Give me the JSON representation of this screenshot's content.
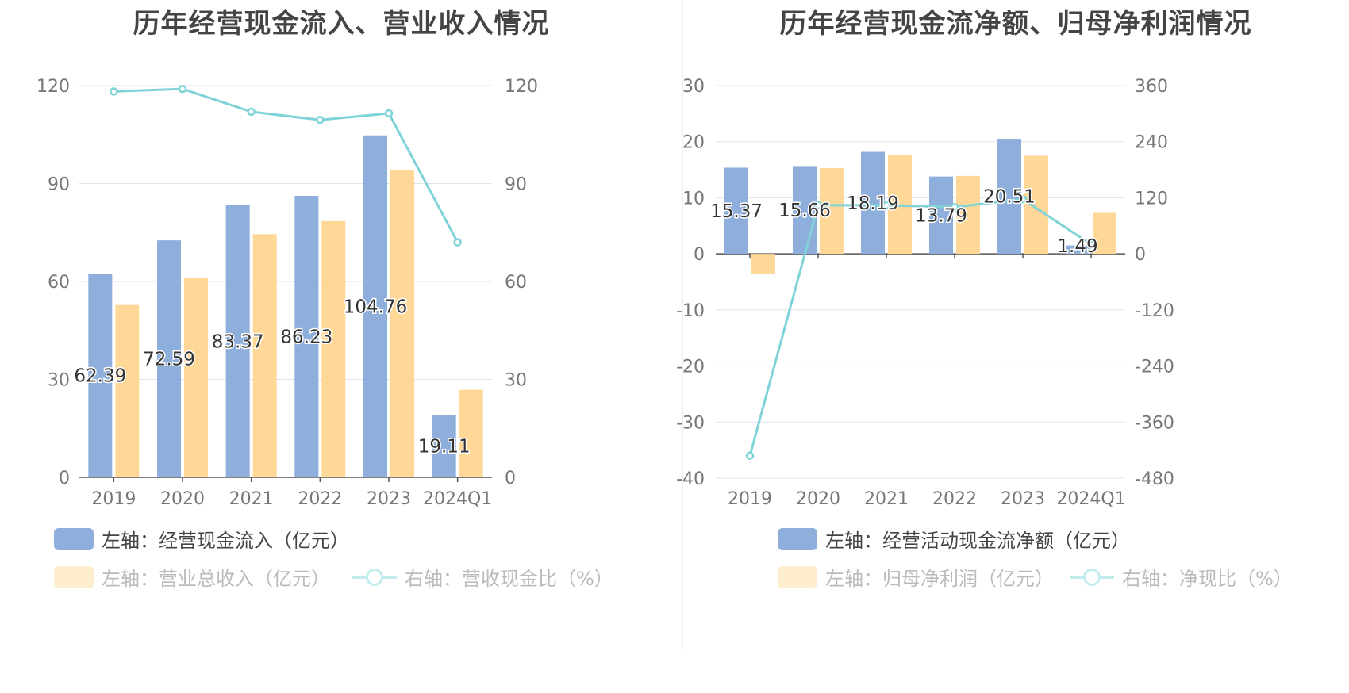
{
  "colors": {
    "bar1": "#8eaedb",
    "bar2": "#ffd897",
    "line": "#7fd3d8",
    "grid": "#dfe3ee",
    "axis": "#555555",
    "tick": "#777777"
  },
  "left": {
    "title": "历年经营现金流入、营业收入情况",
    "legend": {
      "item1": "左轴：经营现金流入（亿元）",
      "item2": "左轴：营业总收入（亿元）",
      "item3": "右轴：营收现金比（%）"
    }
  },
  "right": {
    "title": "历年经营现金流净额、归母净利润情况",
    "legend": {
      "item1": "左轴：经营活动现金流净额（亿元）",
      "item2": "左轴：归母净利润（亿元）",
      "item3": "右轴：净现比（%）"
    }
  },
  "chart_data": [
    {
      "type": "bar",
      "title": "历年经营现金流入、营业收入情况",
      "categories": [
        "2019",
        "2020",
        "2021",
        "2022",
        "2023",
        "2024Q1"
      ],
      "left_ticks": [
        "0",
        "30",
        "60",
        "90",
        "120"
      ],
      "right_ticks": [
        "0",
        "30",
        "60",
        "90",
        "120"
      ],
      "ylim": [
        0,
        120
      ],
      "y2lim": [
        0,
        120
      ],
      "series": [
        {
          "name": "左轴：经营现金流入（亿元）",
          "axis": "left",
          "kind": "bar",
          "values": [
            62.39,
            72.59,
            83.37,
            86.23,
            104.76,
            19.11
          ],
          "labels": [
            "62.39",
            "72.59",
            "83.37",
            "86.23",
            "104.76",
            "19.11"
          ]
        },
        {
          "name": "左轴：营业总收入（亿元）",
          "axis": "left",
          "kind": "bar",
          "values": [
            52.8,
            61.0,
            74.5,
            78.5,
            94.0,
            26.8
          ]
        },
        {
          "name": "右轴：营收现金比（%）",
          "axis": "right",
          "kind": "line",
          "values": [
            118.2,
            119.0,
            112.0,
            109.5,
            111.5,
            72.0
          ]
        }
      ]
    },
    {
      "type": "bar",
      "title": "历年经营现金流净额、归母净利润情况",
      "categories": [
        "2019",
        "2020",
        "2021",
        "2022",
        "2023",
        "2024Q1"
      ],
      "left_ticks": [
        "-40",
        "-30",
        "-20",
        "-10",
        "0",
        "10",
        "20",
        "30"
      ],
      "right_ticks": [
        "-480",
        "-360",
        "-240",
        "-120",
        "0",
        "120",
        "240",
        "360"
      ],
      "ylim": [
        -40,
        30
      ],
      "y2lim": [
        -480,
        360
      ],
      "series": [
        {
          "name": "左轴：经营活动现金流净额（亿元）",
          "axis": "left",
          "kind": "bar",
          "values": [
            15.37,
            15.66,
            18.19,
            13.79,
            20.51,
            1.49
          ],
          "labels": [
            "15.37",
            "15.66",
            "18.19",
            "13.79",
            "20.51",
            "1.49"
          ]
        },
        {
          "name": "左轴：归母净利润（亿元）",
          "axis": "left",
          "kind": "bar",
          "values": [
            -3.5,
            15.3,
            17.6,
            13.9,
            17.5,
            7.3
          ]
        },
        {
          "name": "右轴：净现比（%）",
          "axis": "right",
          "kind": "line",
          "values": [
            -432,
            104,
            104,
            100,
            117,
            20
          ]
        }
      ]
    }
  ]
}
